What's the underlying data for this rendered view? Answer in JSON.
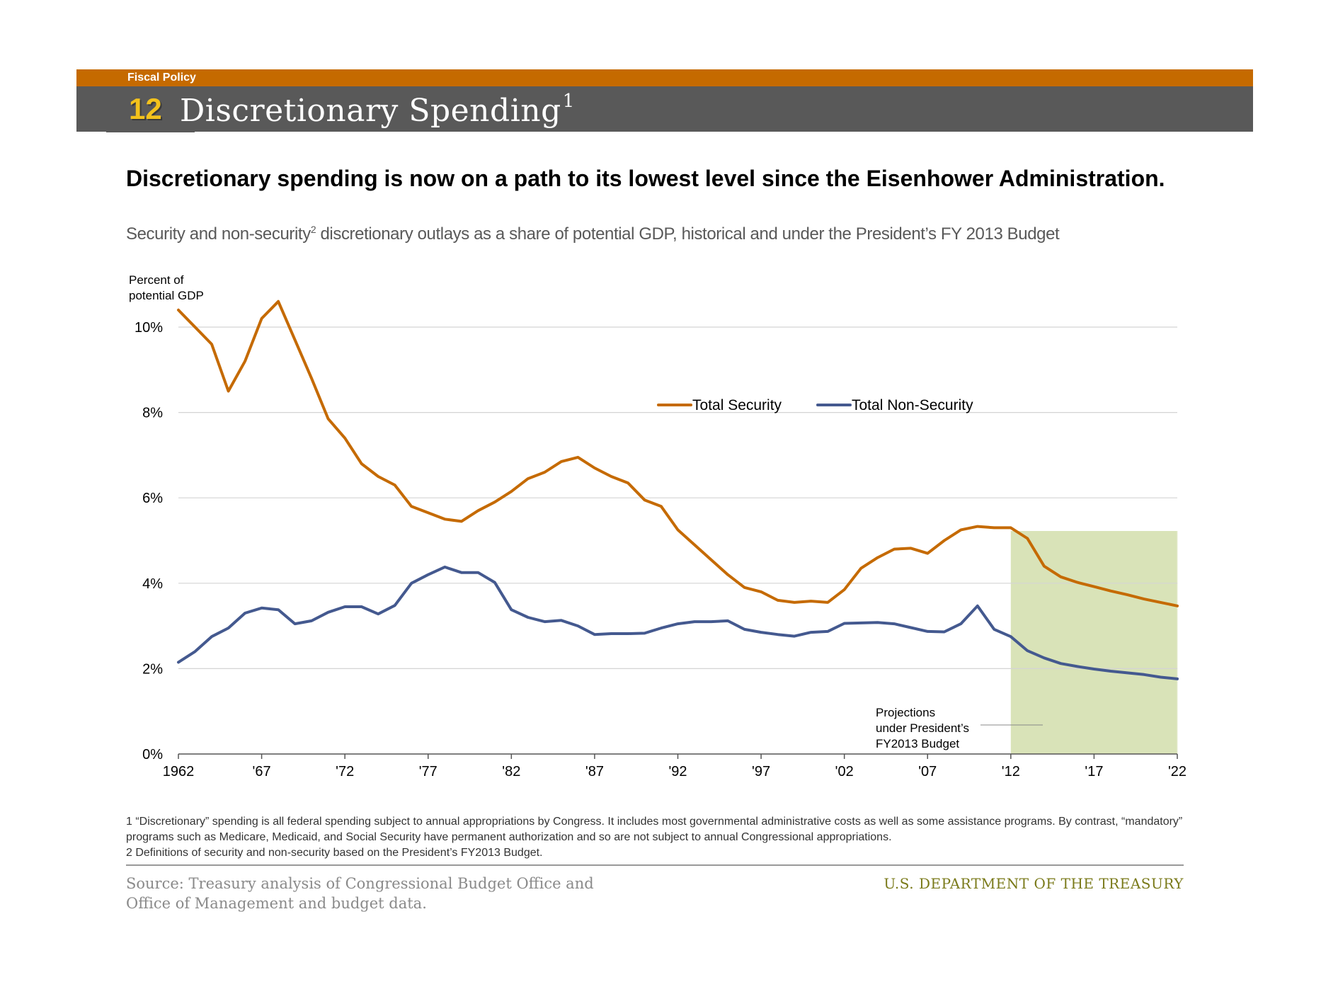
{
  "header": {
    "section_label": "Fiscal Policy",
    "number": "12",
    "title": "Discretionary Spending",
    "title_sup": "1"
  },
  "headline": "Discretionary spending is now on a path to its lowest level since the Eisenhower Administration.",
  "subtitle": {
    "before": "Security and non-security",
    "sup": "2",
    "after": " discretionary outlays as a share of potential GDP, historical and under the President’s FY 2013 Budget"
  },
  "chart_data": {
    "type": "line",
    "ylabel": "Percent of potential GDP",
    "ylabel_lines": [
      "Percent of",
      "potential GDP"
    ],
    "ylim": [
      0,
      10
    ],
    "yticks": [
      0,
      2,
      4,
      6,
      8,
      10
    ],
    "ytick_labels": [
      "0%",
      "2%",
      "4%",
      "6%",
      "8%",
      "10%"
    ],
    "xlim": [
      1962,
      2022
    ],
    "xticks": [
      1962,
      1967,
      1972,
      1977,
      1982,
      1987,
      1992,
      1997,
      2002,
      2007,
      2012,
      2017,
      2022
    ],
    "xtick_labels": [
      "1962",
      "'67",
      "'72",
      "'77",
      "'82",
      "'87",
      "'92",
      "'97",
      "'02",
      "'07",
      "'12",
      "'17",
      "'22"
    ],
    "grid": true,
    "legend_position": "top-right",
    "projection_start": 2012,
    "projection_label": [
      "Projections",
      "under President’s",
      "FY2013 Budget"
    ],
    "x": [
      1962,
      1963,
      1964,
      1965,
      1966,
      1967,
      1968,
      1969,
      1970,
      1971,
      1972,
      1973,
      1974,
      1975,
      1976,
      1977,
      1978,
      1979,
      1980,
      1981,
      1982,
      1983,
      1984,
      1985,
      1986,
      1987,
      1988,
      1989,
      1990,
      1991,
      1992,
      1993,
      1994,
      1995,
      1996,
      1997,
      1998,
      1999,
      2000,
      2001,
      2002,
      2003,
      2004,
      2005,
      2006,
      2007,
      2008,
      2009,
      2010,
      2011,
      2012,
      2013,
      2014,
      2015,
      2016,
      2017,
      2018,
      2019,
      2020,
      2021,
      2022
    ],
    "series": [
      {
        "name": "Total Security",
        "color": "#c56a00",
        "values": [
          10.4,
          10.0,
          9.6,
          8.5,
          9.2,
          10.2,
          10.6,
          9.7,
          8.8,
          7.85,
          7.4,
          6.8,
          6.5,
          6.3,
          5.8,
          5.65,
          5.5,
          5.45,
          5.7,
          5.9,
          6.15,
          6.45,
          6.6,
          6.85,
          6.95,
          6.7,
          6.5,
          6.35,
          5.95,
          5.8,
          5.25,
          4.9,
          4.55,
          4.2,
          3.9,
          3.8,
          3.6,
          3.55,
          3.58,
          3.55,
          3.85,
          4.35,
          4.6,
          4.8,
          4.82,
          4.7,
          5.0,
          5.25,
          5.33,
          5.3,
          5.3,
          5.05,
          4.4,
          4.15,
          4.02,
          3.92,
          3.82,
          3.73,
          3.63,
          3.55,
          3.47
        ]
      },
      {
        "name": "Total Non-Security",
        "color": "#44598f",
        "values": [
          2.15,
          2.4,
          2.75,
          2.95,
          3.3,
          3.42,
          3.38,
          3.05,
          3.12,
          3.32,
          3.45,
          3.45,
          3.28,
          3.48,
          4.0,
          4.2,
          4.38,
          4.25,
          4.25,
          4.02,
          3.38,
          3.2,
          3.1,
          3.13,
          3.0,
          2.8,
          2.82,
          2.82,
          2.83,
          2.95,
          3.05,
          3.1,
          3.1,
          3.12,
          2.92,
          2.85,
          2.8,
          2.76,
          2.85,
          2.87,
          3.06,
          3.07,
          3.08,
          3.05,
          2.96,
          2.87,
          2.86,
          3.05,
          3.47,
          2.92,
          2.75,
          2.42,
          2.25,
          2.12,
          2.05,
          1.99,
          1.94,
          1.9,
          1.86,
          1.8,
          1.76
        ]
      }
    ]
  },
  "footnotes": [
    "1 “Discretionary” spending is all federal spending subject to annual appropriations by Congress. It includes most governmental administrative costs as well as some assistance programs. By contrast, “mandatory” programs such as Medicare, Medicaid, and Social Security have permanent authorization and so are not subject to annual Congressional appropriations.",
    "2 Definitions of security and non-security based on the President’s FY2013 Budget."
  ],
  "source": "Source: Treasury analysis of Congressional Budget Office and Office of Management and budget data.",
  "department": "U.S. DEPARTMENT OF THE TREASURY"
}
